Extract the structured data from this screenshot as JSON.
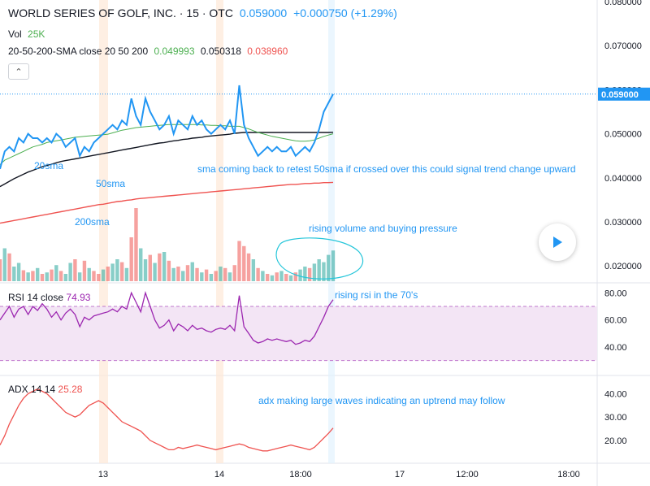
{
  "header": {
    "title": "WORLD SERIES OF GOLF, INC. · 15 · OTC",
    "price": "0.059000",
    "change": "+0.000750 (+1.29%)",
    "vol_label": "Vol",
    "vol_value": "25K",
    "sma_label": "20-50-200-SMA close 20 50 200",
    "sma20_value": "0.049993",
    "sma50_value": "0.050318",
    "sma200_value": "0.038960",
    "collapse_icon": "chevron-up-icon"
  },
  "rsi_legend": {
    "label": "RSI 14 close",
    "value": "74.93"
  },
  "adx_legend": {
    "label": "ADX 14 14",
    "value": "25.28"
  },
  "colors": {
    "price_line": "#2196f3",
    "sma20": "#4caf50",
    "sma50": "#131722",
    "sma200": "#ef5350",
    "vol_up": "#26a69a",
    "vol_down": "#ef5350",
    "rsi_line": "#9c27b0",
    "rsi_band": "#f3e5f5",
    "adx_line": "#ef5350",
    "annotation": "#2196f3"
  },
  "price_tag": "0.059000",
  "annotations": [
    "20sma",
    "50sma",
    "200sma",
    "sma coming back to retest 50sma if crossed over this could signal trend change upward",
    "rising volume and buying pressure",
    "rising rsi in the 70's",
    "adx making large waves indicating an uptrend may follow"
  ],
  "play_icon": "play-icon",
  "chart_data": [
    {
      "type": "line",
      "pane": "price",
      "x_ticks": [
        "13",
        "14",
        "18:00",
        "17",
        "12:00",
        "18:00"
      ],
      "y_ticks": [
        "0.080000",
        "0.070000",
        "0.060000",
        "0.050000",
        "0.040000",
        "0.030000",
        "0.020000"
      ],
      "ylim": [
        0.018,
        0.08
      ],
      "series": [
        {
          "values": [
            0.042,
            0.046,
            0.047,
            0.046,
            0.049,
            0.048,
            0.05,
            0.049,
            0.049,
            0.048,
            0.049,
            0.048,
            0.05,
            0.049,
            0.047,
            0.048,
            0.049,
            0.045,
            0.047,
            0.046,
            0.048,
            0.049,
            0.05,
            0.051,
            0.052,
            0.051,
            0.053,
            0.052,
            0.058,
            0.054,
            0.052,
            0.058,
            0.055,
            0.053,
            0.051,
            0.052,
            0.054,
            0.05,
            0.053,
            0.052,
            0.051,
            0.054,
            0.052,
            0.053,
            0.051,
            0.05,
            0.051,
            0.052,
            0.051,
            0.053,
            0.05,
            0.061,
            0.052,
            0.049,
            0.047,
            0.045,
            0.046,
            0.047,
            0.046,
            0.047,
            0.046,
            0.046,
            0.047,
            0.045,
            0.046,
            0.047,
            0.046,
            0.048,
            0.051,
            0.055,
            0.057,
            0.059
          ]
        },
        {
          "values": [
            0.043,
            0.044,
            0.0445,
            0.045,
            0.0455,
            0.046,
            0.0465,
            0.047,
            0.0473,
            0.0476,
            0.048,
            0.0482,
            0.0484,
            0.0486,
            0.0488,
            0.049,
            0.0492,
            0.0493,
            0.0494,
            0.0495,
            0.0496,
            0.0497,
            0.0498,
            0.0499,
            0.0502,
            0.0505,
            0.0508,
            0.051,
            0.0512,
            0.0514,
            0.0515,
            0.0516,
            0.0517,
            0.0518,
            0.0519,
            0.052,
            0.0521,
            0.0521,
            0.0521,
            0.0521,
            0.0521,
            0.0521,
            0.0521,
            0.052,
            0.052,
            0.0519,
            0.0519,
            0.0518,
            0.0518,
            0.0517,
            0.0517,
            0.0517,
            0.0514,
            0.0511,
            0.0507,
            0.0503,
            0.05,
            0.0497,
            0.0494,
            0.0492,
            0.049,
            0.0488,
            0.0486,
            0.0484,
            0.0483,
            0.0483,
            0.0484,
            0.0486,
            0.049,
            0.0494,
            0.0497,
            0.04999
          ]
        },
        {
          "values": [
            0.038,
            0.0386,
            0.0392,
            0.0398,
            0.0403,
            0.0408,
            0.0413,
            0.0417,
            0.0421,
            0.0425,
            0.0428,
            0.0431,
            0.0434,
            0.0437,
            0.0439,
            0.0441,
            0.0443,
            0.0445,
            0.0447,
            0.0449,
            0.0451,
            0.0453,
            0.0455,
            0.0457,
            0.0459,
            0.0461,
            0.0463,
            0.0465,
            0.0467,
            0.0469,
            0.0471,
            0.0473,
            0.0475,
            0.0477,
            0.0479,
            0.048,
            0.0482,
            0.0484,
            0.0485,
            0.0487,
            0.0488,
            0.049,
            0.0491,
            0.0492,
            0.0494,
            0.0495,
            0.0496,
            0.0497,
            0.0498,
            0.0499,
            0.0501,
            0.0502,
            0.0503,
            0.0503,
            0.0503,
            0.0503,
            0.0503,
            0.0503,
            0.0503,
            0.0503,
            0.0503,
            0.0503,
            0.0503,
            0.0503,
            0.0503,
            0.0503,
            0.0503,
            0.0503,
            0.0503,
            0.0503,
            0.0503,
            0.05032
          ]
        },
        {
          "values": [
            0.0297,
            0.0299,
            0.0301,
            0.0303,
            0.0305,
            0.0307,
            0.0309,
            0.0311,
            0.0313,
            0.0315,
            0.0317,
            0.0319,
            0.0321,
            0.0323,
            0.0325,
            0.0327,
            0.0329,
            0.0331,
            0.0333,
            0.0335,
            0.0337,
            0.0339,
            0.034,
            0.0342,
            0.0344,
            0.0346,
            0.0347,
            0.0349,
            0.035,
            0.0352,
            0.0353,
            0.0354,
            0.0355,
            0.0356,
            0.0357,
            0.0358,
            0.0359,
            0.036,
            0.0361,
            0.0362,
            0.0363,
            0.0364,
            0.0365,
            0.0366,
            0.0367,
            0.0368,
            0.0369,
            0.037,
            0.0371,
            0.0372,
            0.0373,
            0.0374,
            0.0375,
            0.0376,
            0.0377,
            0.0378,
            0.0379,
            0.038,
            0.0381,
            0.0382,
            0.0383,
            0.0384,
            0.0385,
            0.0385,
            0.0386,
            0.0387,
            0.0387,
            0.0388,
            0.0388,
            0.0389,
            0.0389,
            0.03896
          ]
        }
      ]
    },
    {
      "type": "bar",
      "pane": "volume",
      "values": [
        30,
        45,
        38,
        20,
        25,
        15,
        12,
        14,
        18,
        10,
        12,
        16,
        22,
        14,
        10,
        25,
        30,
        12,
        28,
        18,
        14,
        10,
        16,
        20,
        24,
        30,
        26,
        18,
        60,
        100,
        45,
        30,
        36,
        25,
        38,
        40,
        28,
        18,
        20,
        14,
        22,
        26,
        18,
        12,
        16,
        10,
        14,
        20,
        18,
        12,
        22,
        55,
        48,
        38,
        30,
        18,
        14,
        10,
        8,
        12,
        14,
        10,
        8,
        12,
        16,
        20,
        18,
        24,
        30,
        26,
        36,
        42
      ],
      "colors": [
        "down",
        "up",
        "down",
        "up",
        "up",
        "down",
        "up",
        "down",
        "up",
        "down",
        "up",
        "down",
        "up",
        "down",
        "up",
        "up",
        "down",
        "up",
        "down",
        "up",
        "down",
        "down",
        "up",
        "down",
        "up",
        "up",
        "down",
        "up",
        "down",
        "down",
        "up",
        "up",
        "down",
        "up",
        "down",
        "up",
        "down",
        "up",
        "down",
        "up",
        "down",
        "up",
        "down",
        "up",
        "down",
        "up",
        "down",
        "up",
        "down",
        "up",
        "down",
        "down",
        "down",
        "down",
        "up",
        "down",
        "up",
        "down",
        "up",
        "down",
        "up",
        "down",
        "up",
        "down",
        "up",
        "up",
        "down",
        "up",
        "up",
        "up",
        "up",
        "up"
      ]
    },
    {
      "type": "line",
      "pane": "rsi",
      "y_ticks": [
        "80.00",
        "60.00",
        "40.00"
      ],
      "ylim": [
        25,
        85
      ],
      "bands": [
        70,
        30
      ],
      "values": [
        60,
        65,
        70,
        62,
        68,
        70,
        64,
        70,
        67,
        72,
        68,
        62,
        66,
        60,
        65,
        68,
        64,
        55,
        62,
        60,
        63,
        64,
        65,
        66,
        68,
        66,
        70,
        68,
        80,
        73,
        66,
        80,
        70,
        60,
        54,
        56,
        60,
        52,
        57,
        55,
        52,
        56,
        53,
        54,
        52,
        51,
        53,
        54,
        53,
        56,
        52,
        78,
        55,
        50,
        45,
        43,
        44,
        46,
        45,
        46,
        45,
        44,
        45,
        42,
        43,
        45,
        44,
        48,
        55,
        62,
        70,
        74.93
      ]
    },
    {
      "type": "line",
      "pane": "adx",
      "y_ticks": [
        "40.00",
        "30.00",
        "20.00"
      ],
      "ylim": [
        13,
        45
      ],
      "values": [
        18,
        22,
        27,
        31,
        35,
        38,
        40,
        41,
        42,
        41,
        40,
        38,
        36,
        34,
        32,
        31,
        30,
        31,
        33,
        35,
        36,
        37,
        36,
        34,
        32,
        30,
        28,
        27,
        26,
        25,
        24,
        22,
        20,
        19,
        18,
        17,
        16,
        16,
        17,
        16.5,
        17,
        17.5,
        18,
        17.5,
        17,
        16.5,
        16,
        16.5,
        17,
        17.5,
        18,
        18.5,
        18,
        17,
        16.5,
        16,
        15.5,
        15.5,
        16,
        16.5,
        17,
        17.5,
        18,
        17.5,
        17,
        16.5,
        16,
        17,
        19,
        21,
        23,
        25.28
      ]
    }
  ]
}
